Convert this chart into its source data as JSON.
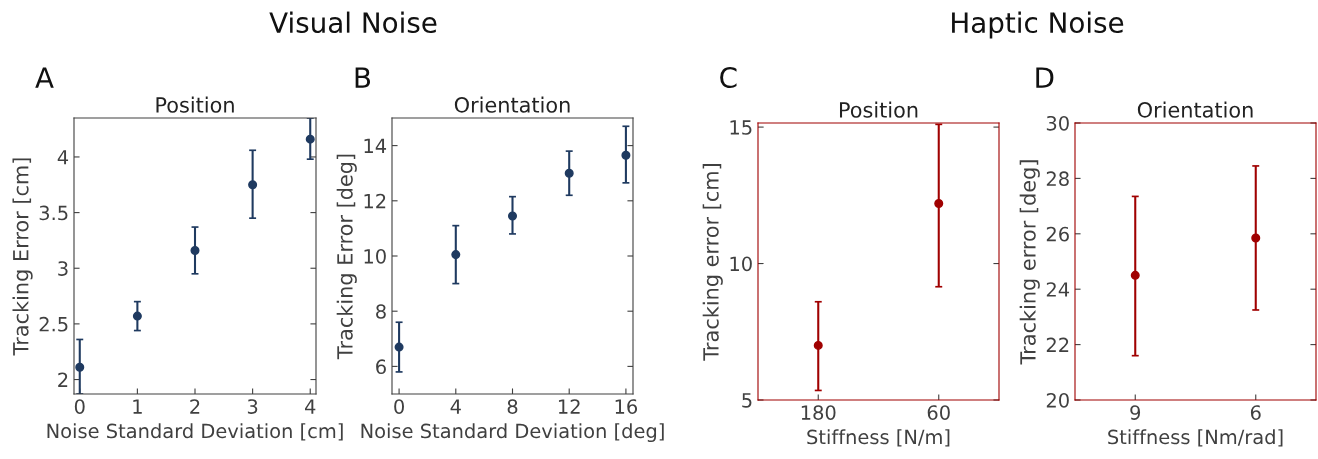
{
  "chart_data": [
    {
      "type": "scatter",
      "title": "Position",
      "xlabel": "Noise Standard Deviation [cm]",
      "ylabel": "Tracking Error [cm]",
      "annotations": [
        "A",
        "Visual Noise"
      ],
      "x": [
        0,
        1,
        2,
        3,
        4
      ],
      "values": [
        2.11,
        2.57,
        3.16,
        3.75,
        4.16
      ],
      "errors": [
        [
          1.87,
          2.36
        ],
        [
          2.44,
          2.7
        ],
        [
          2.95,
          3.37
        ],
        [
          3.45,
          4.06
        ],
        [
          3.98,
          4.35
        ]
      ],
      "color": "#1f3a60",
      "marker": "circle",
      "xlim": [
        -0.1,
        4.1
      ],
      "xticks": [
        0,
        1,
        2,
        3,
        4
      ],
      "ylim": [
        1.87,
        4.35
      ],
      "yticks": [
        2,
        2.5,
        3,
        3.5,
        4
      ],
      "grid": false,
      "legend": false
    },
    {
      "type": "scatter",
      "title": "Orientation",
      "xlabel": "Noise Standard Deviation [deg]",
      "ylabel": "Tracking Error [deg]",
      "annotations": [
        "B"
      ],
      "x": [
        0,
        4,
        8,
        12,
        16
      ],
      "values": [
        6.7,
        10.05,
        11.45,
        13.0,
        13.65
      ],
      "errors": [
        [
          5.8,
          7.6
        ],
        [
          9.0,
          11.1
        ],
        [
          10.8,
          12.15
        ],
        [
          12.2,
          13.8
        ],
        [
          12.65,
          14.7
        ]
      ],
      "color": "#1f3a60",
      "marker": "circle",
      "xlim": [
        -0.5,
        16.5
      ],
      "xticks": [
        0,
        4,
        8,
        12,
        16
      ],
      "ylim": [
        5,
        15
      ],
      "yticks": [
        6,
        8,
        10,
        12,
        14
      ],
      "grid": false,
      "legend": false
    },
    {
      "type": "scatter",
      "title": "Position",
      "xlabel": "Stiffness [N/m]",
      "ylabel": "Tracking error [cm]",
      "annotations": [
        "C",
        "Haptic Noise"
      ],
      "categories": [
        "180",
        "60"
      ],
      "values": [
        7.0,
        12.2
      ],
      "errors": [
        [
          5.35,
          8.6
        ],
        [
          9.15,
          15.1
        ]
      ],
      "color": "#a00000",
      "marker": "circle",
      "ylim": [
        5,
        15.15
      ],
      "yticks": [
        5,
        10,
        15
      ],
      "grid": false,
      "legend": false
    },
    {
      "type": "scatter",
      "title": "Orientation",
      "xlabel": "Stiffness [Nm/rad]",
      "ylabel": "Tracking error [deg]",
      "annotations": [
        "D"
      ],
      "categories": [
        "9",
        "6"
      ],
      "values": [
        24.5,
        25.85
      ],
      "errors": [
        [
          21.6,
          27.35
        ],
        [
          23.25,
          28.45
        ]
      ],
      "color": "#a00000",
      "marker": "circle",
      "ylim": [
        20,
        30
      ],
      "yticks": [
        20,
        22,
        24,
        26,
        28,
        30
      ],
      "grid": false,
      "legend": false
    }
  ]
}
